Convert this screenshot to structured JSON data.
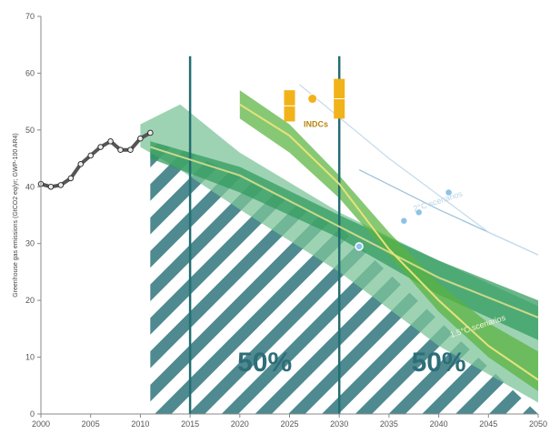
{
  "chart_data": {
    "type": "area",
    "title": "",
    "xlabel": "",
    "ylabel": "Greenhouse gas emissions (GtCO2 eq/yr; GWP-100 AR4)",
    "xlim": [
      2000,
      2050
    ],
    "ylim": [
      0,
      70
    ],
    "x_ticks": [
      "2000",
      "2005",
      "2010",
      "2015",
      "2020",
      "2025",
      "2030",
      "2035",
      "2040",
      "2045",
      "2050"
    ],
    "y_ticks": [
      "0",
      "10",
      "20",
      "30",
      "40",
      "50",
      "60",
      "70"
    ],
    "grid": false,
    "vertical_markers": [
      2015,
      2030
    ],
    "hatched_region": {
      "x": [
        2011,
        2015,
        2030,
        2050
      ],
      "top": [
        48,
        46,
        33,
        0
      ]
    },
    "shares": [
      {
        "label": "50%",
        "x_from": 2015,
        "x_to": 2030
      },
      {
        "label": "50%",
        "x_from": 2030,
        "x_to": 2050
      }
    ],
    "historical": {
      "x": [
        2000,
        2001,
        2002,
        2003,
        2004,
        2005,
        2006,
        2007,
        2008,
        2009,
        2010,
        2011
      ],
      "y": [
        40.5,
        40,
        40.3,
        41.5,
        44,
        45.5,
        47,
        48,
        46.5,
        46.5,
        48.5,
        49.5
      ]
    },
    "bands": [
      {
        "x": [
          2010,
          2014,
          2020,
          2030,
          2040,
          2050
        ],
        "upper": [
          51,
          54.5,
          46,
          35.5,
          27,
          19
        ],
        "lower": [
          47,
          43,
          36,
          25,
          12,
          2
        ],
        "color": "#7cc49a"
      },
      {
        "x": [
          2011,
          2020,
          2030,
          2040,
          2050
        ],
        "upper": [
          48,
          43.5,
          35,
          27,
          20
        ],
        "lower": [
          45,
          39,
          31,
          21,
          13
        ],
        "color": "#2f9a5c"
      },
      {
        "x": [
          2020,
          2025,
          2030,
          2035,
          2040,
          2045,
          2050
        ],
        "upper": [
          57,
          51,
          42,
          32,
          23,
          16,
          11
        ],
        "lower": [
          52,
          46,
          38,
          28,
          18,
          10,
          4
        ],
        "color": "#59b33f"
      }
    ],
    "series": [
      {
        "x": [
          2011,
          2020,
          2030,
          2040,
          2050
        ],
        "y": [
          47,
          42,
          33,
          24,
          17
        ],
        "color": "#ccd98a"
      },
      {
        "x": [
          2020,
          2025,
          2030,
          2035,
          2040,
          2045,
          2050
        ],
        "y": [
          54.5,
          49,
          40.5,
          29,
          20,
          12,
          6
        ],
        "color": "#e6e27a"
      },
      {
        "x": [
          2032,
          2040,
          2050
        ],
        "y": [
          43,
          36,
          28
        ],
        "color": "#9cc3dc"
      },
      {
        "x": [
          2026,
          2035,
          2045,
          2050
        ],
        "y": [
          58,
          45,
          32,
          28
        ],
        "color": "#c7dcec"
      }
    ],
    "indc_bars": [
      {
        "x": 2025,
        "low": 51.5,
        "high": 57
      },
      {
        "x": 2030,
        "low": 52,
        "high": 59
      }
    ],
    "indc_label": "INDCs",
    "points": [
      {
        "x": 2036.5,
        "y": 34
      },
      {
        "x": 2038,
        "y": 35.5
      },
      {
        "x": 2041,
        "y": 39
      },
      {
        "x": 2032,
        "y": 29.5
      }
    ],
    "annotations": [
      {
        "text": "1.5°C scenarios",
        "x": 2044,
        "y": 15
      },
      {
        "text": "2°C scenarios",
        "x": 2040,
        "y": 37
      }
    ]
  }
}
